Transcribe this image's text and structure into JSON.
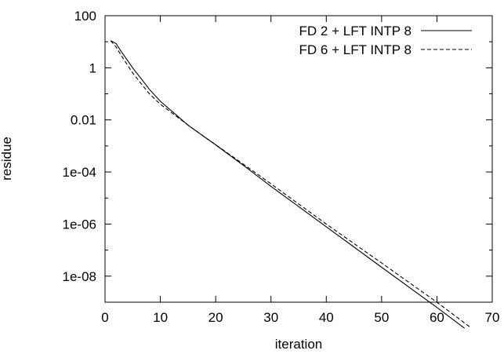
{
  "chart_data": {
    "type": "line",
    "xlabel": "iteration",
    "ylabel": "residue",
    "xlim": [
      0,
      70
    ],
    "ylim": [
      1e-09,
      100
    ],
    "yscale": "log",
    "grid": false,
    "legend_position": "top-right",
    "xticks": [
      0,
      10,
      20,
      30,
      40,
      50,
      60,
      70
    ],
    "xtick_labels": [
      "0",
      "10",
      "20",
      "30",
      "40",
      "50",
      "60",
      "70"
    ],
    "yticks": [
      100,
      1,
      0.01,
      0.0001,
      1e-06,
      1e-08
    ],
    "ytick_labels": [
      "100",
      "1",
      "0.01",
      "1e-04",
      "1e-06",
      "1e-08"
    ],
    "series": [
      {
        "name": "FD 2 + LFT INTP 8",
        "style": "solid",
        "color": "#000000",
        "x": [
          1,
          2,
          3,
          5,
          8,
          10,
          15,
          18,
          20,
          25,
          30,
          40,
          50,
          60,
          65
        ],
        "y": [
          11,
          8.5,
          4,
          1,
          0.15,
          0.052,
          0.0063,
          0.0022,
          0.0011,
          0.00018,
          2.8e-05,
          7.9e-07,
          2.2e-08,
          6.3e-10,
          1e-10
        ]
      },
      {
        "name": "FD 6 + LFT INTP 8",
        "style": "dashed",
        "color": "#000000",
        "x": [
          1,
          2,
          3,
          5,
          8,
          10,
          15,
          18,
          20,
          25,
          30,
          40,
          50,
          60,
          66
        ],
        "y": [
          11,
          6.3,
          2.8,
          0.63,
          0.1,
          0.04,
          0.0063,
          0.0022,
          0.00112,
          0.0002,
          3.5e-05,
          1e-06,
          3.2e-08,
          1e-09,
          1.1e-10
        ]
      }
    ]
  }
}
